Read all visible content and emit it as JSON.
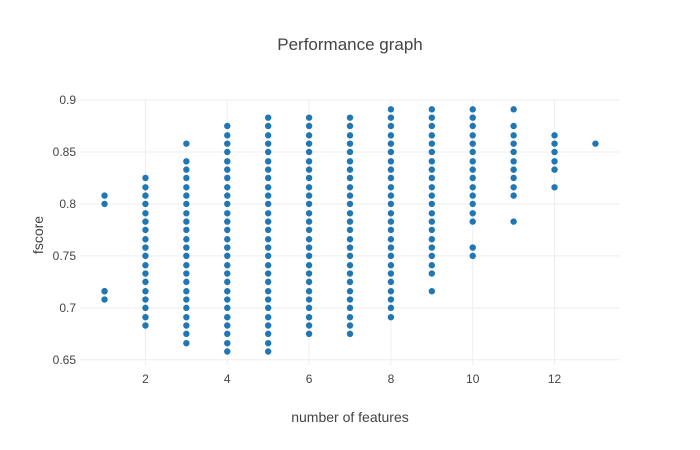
{
  "chart_data": {
    "type": "scatter",
    "title": "Performance graph",
    "xlabel": "number of features",
    "ylabel": "fscore",
    "xlim": [
      0.4,
      13.6
    ],
    "ylim": [
      0.645,
      0.9
    ],
    "xticks": [
      2,
      4,
      6,
      8,
      10,
      12
    ],
    "yticks": [
      0.65,
      0.7,
      0.75,
      0.8,
      0.85,
      0.9
    ],
    "ytick_labels": [
      "0.65",
      "0.7",
      "0.75",
      "0.8",
      "0.85",
      "0.9"
    ],
    "grid": true,
    "marker_color": "#1f77b4",
    "series": [
      {
        "points": [
          {
            "x": 1,
            "values": [
              0.708,
              0.716,
              0.716,
              0.8,
              0.808
            ]
          },
          {
            "x": 2,
            "values": [
              0.683,
              0.691,
              0.7,
              0.708,
              0.716,
              0.725,
              0.733,
              0.741,
              0.75,
              0.758,
              0.766,
              0.775,
              0.783,
              0.791,
              0.8,
              0.808,
              0.816,
              0.825
            ]
          },
          {
            "x": 3,
            "values": [
              0.666,
              0.675,
              0.683,
              0.691,
              0.7,
              0.708,
              0.716,
              0.725,
              0.733,
              0.741,
              0.75,
              0.758,
              0.766,
              0.775,
              0.783,
              0.791,
              0.8,
              0.808,
              0.816,
              0.825,
              0.833,
              0.841,
              0.858
            ]
          },
          {
            "x": 4,
            "values": [
              0.658,
              0.666,
              0.675,
              0.683,
              0.691,
              0.7,
              0.708,
              0.716,
              0.725,
              0.733,
              0.741,
              0.75,
              0.758,
              0.766,
              0.775,
              0.783,
              0.791,
              0.8,
              0.808,
              0.816,
              0.825,
              0.833,
              0.841,
              0.85,
              0.858,
              0.866,
              0.875
            ]
          },
          {
            "x": 5,
            "values": [
              0.658,
              0.666,
              0.675,
              0.683,
              0.691,
              0.7,
              0.708,
              0.716,
              0.725,
              0.733,
              0.741,
              0.75,
              0.758,
              0.766,
              0.775,
              0.783,
              0.791,
              0.8,
              0.808,
              0.816,
              0.825,
              0.833,
              0.841,
              0.85,
              0.858,
              0.866,
              0.875,
              0.883
            ]
          },
          {
            "x": 6,
            "values": [
              0.675,
              0.683,
              0.691,
              0.7,
              0.708,
              0.716,
              0.725,
              0.733,
              0.741,
              0.75,
              0.758,
              0.766,
              0.775,
              0.783,
              0.791,
              0.8,
              0.808,
              0.816,
              0.825,
              0.833,
              0.841,
              0.85,
              0.858,
              0.866,
              0.875,
              0.883
            ]
          },
          {
            "x": 7,
            "values": [
              0.675,
              0.683,
              0.691,
              0.7,
              0.708,
              0.716,
              0.725,
              0.733,
              0.741,
              0.75,
              0.758,
              0.766,
              0.775,
              0.783,
              0.791,
              0.8,
              0.808,
              0.816,
              0.825,
              0.833,
              0.841,
              0.85,
              0.858,
              0.866,
              0.875,
              0.883
            ]
          },
          {
            "x": 8,
            "values": [
              0.691,
              0.7,
              0.708,
              0.716,
              0.725,
              0.733,
              0.741,
              0.75,
              0.758,
              0.766,
              0.775,
              0.783,
              0.791,
              0.8,
              0.808,
              0.816,
              0.825,
              0.833,
              0.841,
              0.85,
              0.858,
              0.866,
              0.875,
              0.883,
              0.891
            ]
          },
          {
            "x": 9,
            "values": [
              0.716,
              0.733,
              0.741,
              0.75,
              0.758,
              0.766,
              0.775,
              0.783,
              0.791,
              0.8,
              0.808,
              0.816,
              0.825,
              0.833,
              0.841,
              0.85,
              0.858,
              0.866,
              0.875,
              0.883,
              0.891
            ]
          },
          {
            "x": 10,
            "values": [
              0.75,
              0.758,
              0.783,
              0.791,
              0.8,
              0.808,
              0.816,
              0.825,
              0.833,
              0.841,
              0.85,
              0.858,
              0.866,
              0.875,
              0.883,
              0.891
            ]
          },
          {
            "x": 11,
            "values": [
              0.783,
              0.808,
              0.816,
              0.825,
              0.833,
              0.841,
              0.85,
              0.858,
              0.866,
              0.875,
              0.891
            ]
          },
          {
            "x": 12,
            "values": [
              0.816,
              0.833,
              0.841,
              0.85,
              0.858,
              0.866
            ]
          },
          {
            "x": 13,
            "values": [
              0.858
            ]
          }
        ]
      }
    ]
  }
}
